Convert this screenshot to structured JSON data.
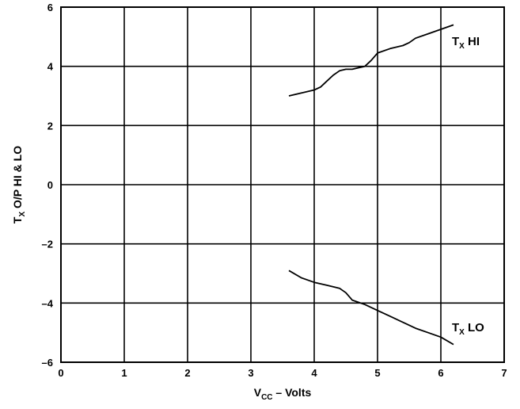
{
  "chart_data": {
    "type": "line",
    "xlabel": {
      "main": "V",
      "sub": "CC",
      "rest": " – Volts"
    },
    "ylabel": {
      "main": "T",
      "sub": "X",
      "rest": " O/P HI & LO"
    },
    "xlim": [
      0,
      7
    ],
    "ylim": [
      -6,
      6
    ],
    "x_ticks": [
      "0",
      "1",
      "2",
      "3",
      "4",
      "5",
      "6",
      "7"
    ],
    "y_ticks": [
      "–6",
      "–4",
      "–2",
      "0",
      "2",
      "4",
      "6"
    ],
    "grid": true,
    "series": [
      {
        "name": {
          "main": "T",
          "sub": "X",
          "rest": " HI"
        },
        "x": [
          3.6,
          3.8,
          4.0,
          4.1,
          4.2,
          4.3,
          4.4,
          4.5,
          4.6,
          4.7,
          4.8,
          4.9,
          5.0,
          5.2,
          5.4,
          5.5,
          5.6,
          5.8,
          6.0,
          6.2
        ],
        "y": [
          3.0,
          3.1,
          3.2,
          3.3,
          3.5,
          3.7,
          3.85,
          3.9,
          3.9,
          3.95,
          4.0,
          4.2,
          4.45,
          4.6,
          4.7,
          4.8,
          4.95,
          5.1,
          5.25,
          5.4
        ]
      },
      {
        "name": {
          "main": "T",
          "sub": "X",
          "rest": " LO"
        },
        "x": [
          3.6,
          3.8,
          4.0,
          4.2,
          4.4,
          4.5,
          4.6,
          4.8,
          5.0,
          5.2,
          5.4,
          5.6,
          5.8,
          6.0,
          6.2
        ],
        "y": [
          -2.9,
          -3.15,
          -3.3,
          -3.4,
          -3.5,
          -3.65,
          -3.9,
          -4.05,
          -4.25,
          -4.45,
          -4.65,
          -4.85,
          -5.0,
          -5.15,
          -5.4
        ]
      }
    ]
  }
}
